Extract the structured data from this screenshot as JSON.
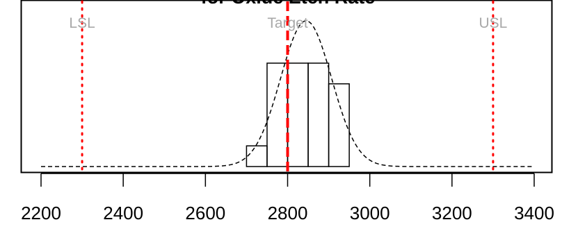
{
  "chart_data": {
    "type": "bar",
    "title": "for Oxide Etch Rate",
    "xlabel": "",
    "ylabel": "",
    "xlim": [
      2200,
      3400
    ],
    "x_ticks": [
      2200,
      2400,
      2600,
      2800,
      3000,
      3200,
      3400
    ],
    "x_tick_labels": [
      "2200",
      "2400",
      "2600",
      "2800",
      "3000",
      "3200",
      "3400"
    ],
    "y_axis_shown": false,
    "bins": [
      {
        "x0": 2700,
        "x1": 2750,
        "count": 1
      },
      {
        "x0": 2750,
        "x1": 2800,
        "count": 5
      },
      {
        "x0": 2800,
        "x1": 2850,
        "count": 5
      },
      {
        "x0": 2850,
        "x1": 2900,
        "count": 5
      },
      {
        "x0": 2900,
        "x1": 2950,
        "count": 4
      }
    ],
    "normal_curve": {
      "mean": 2845,
      "sd": 62,
      "style": "dashed",
      "color": "#000000"
    },
    "spec_lines": [
      {
        "label": "LSL",
        "value": 2300,
        "style": "dotted",
        "color": "#ff0000"
      },
      {
        "label": "Target",
        "value": 2800,
        "style": "dashed",
        "color": "#ff0000"
      },
      {
        "label": "USL",
        "value": 3300,
        "style": "dotted",
        "color": "#ff0000"
      }
    ],
    "spec_label_color": "#a8a8a8",
    "grid": false
  }
}
